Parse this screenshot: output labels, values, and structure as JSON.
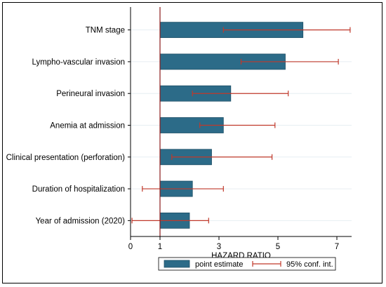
{
  "chart_data": {
    "type": "bar",
    "orientation": "horizontal",
    "categories": [
      "TNM stage",
      "Lympho-vascular invasion",
      "Perineural invasion",
      "Anemia at admission",
      "Clinical presentation (perforation)",
      "Duration of hospitalization",
      "Year of admission (2020)"
    ],
    "values": [
      5.85,
      5.25,
      3.4,
      3.15,
      2.75,
      2.1,
      2.0
    ],
    "ci_lower": [
      3.15,
      3.75,
      2.1,
      2.35,
      1.4,
      0.4,
      0.05
    ],
    "ci_upper": [
      7.45,
      7.05,
      5.35,
      4.9,
      4.8,
      3.15,
      2.65
    ],
    "xlabel": "HAZARD RATIO",
    "xlim": [
      0,
      7.5
    ],
    "xticks": [
      0,
      1,
      3,
      5,
      7
    ],
    "bar_base": 1,
    "grid": true,
    "legend": [
      {
        "label": "point estimate",
        "kind": "bar"
      },
      {
        "label": "95% conf. int.",
        "kind": "errorbar"
      }
    ],
    "legend_position": "bottom",
    "colors": {
      "bar_fill": "#2c6b88",
      "bar_stroke": "#1f4f66",
      "errorbar": "#c0392b",
      "refline": "#8b1a1a",
      "grid": "#e6eef2"
    }
  }
}
